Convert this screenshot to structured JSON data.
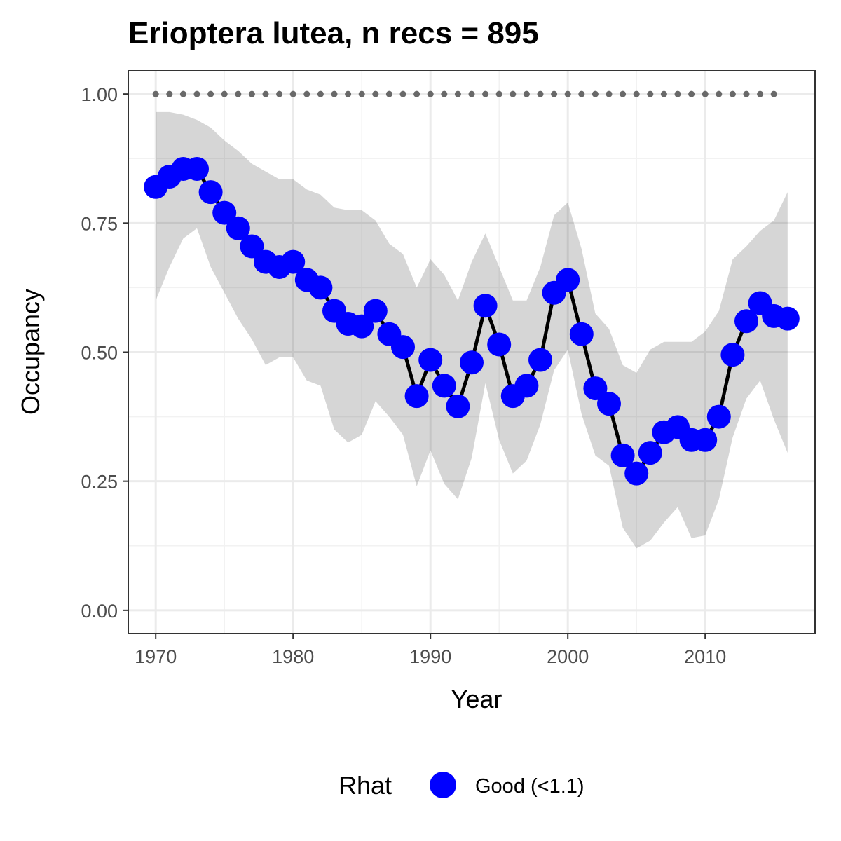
{
  "chart_data": {
    "type": "line",
    "title": "Erioptera lutea, n recs = 895",
    "xlabel": "Year",
    "ylabel": "Occupancy",
    "xlim": [
      1968,
      2018
    ],
    "ylim": [
      -0.045,
      1.045
    ],
    "x_ticks": [
      1970,
      1980,
      1990,
      2000,
      2010
    ],
    "x_tick_labels": [
      "1970",
      "1980",
      "1990",
      "2000",
      "2010"
    ],
    "y_ticks": [
      0,
      0.25,
      0.5,
      0.75,
      1.0
    ],
    "y_tick_labels": [
      "0.00",
      "0.25",
      "0.50",
      "0.75",
      "1.00"
    ],
    "grid": true,
    "legend": {
      "title": "Rhat",
      "position": "bottom",
      "entries": [
        {
          "label": "Good (<1.1)",
          "color": "#0000ff"
        }
      ]
    },
    "x": [
      1970,
      1971,
      1972,
      1973,
      1974,
      1975,
      1976,
      1977,
      1978,
      1979,
      1980,
      1981,
      1982,
      1983,
      1984,
      1985,
      1986,
      1987,
      1988,
      1989,
      1990,
      1991,
      1992,
      1993,
      1994,
      1995,
      1996,
      1997,
      1998,
      1999,
      2000,
      2001,
      2002,
      2003,
      2004,
      2005,
      2006,
      2007,
      2008,
      2009,
      2010,
      2011,
      2012,
      2013,
      2014,
      2015,
      2016
    ],
    "series": [
      {
        "role": "mean",
        "color": "#0000ff",
        "line_color": "#000000",
        "values": [
          0.82,
          0.84,
          0.855,
          0.855,
          0.81,
          0.77,
          0.74,
          0.705,
          0.675,
          0.665,
          0.675,
          0.64,
          0.625,
          0.58,
          0.555,
          0.55,
          0.58,
          0.535,
          0.51,
          0.415,
          0.485,
          0.435,
          0.395,
          0.48,
          0.59,
          0.515,
          0.415,
          0.435,
          0.485,
          0.615,
          0.64,
          0.535,
          0.43,
          0.4,
          0.3,
          0.265,
          0.305,
          0.345,
          0.355,
          0.33,
          0.33,
          0.375,
          0.495,
          0.56,
          0.595,
          0.57,
          0.565
        ]
      },
      {
        "role": "ci_upper",
        "color": "#d9d9d9",
        "values": [
          0.965,
          0.965,
          0.96,
          0.95,
          0.935,
          0.91,
          0.89,
          0.865,
          0.85,
          0.835,
          0.835,
          0.815,
          0.805,
          0.78,
          0.775,
          0.775,
          0.755,
          0.71,
          0.69,
          0.625,
          0.68,
          0.65,
          0.6,
          0.675,
          0.73,
          0.665,
          0.6,
          0.6,
          0.665,
          0.765,
          0.79,
          0.7,
          0.575,
          0.545,
          0.475,
          0.46,
          0.505,
          0.52,
          0.52,
          0.52,
          0.54,
          0.58,
          0.68,
          0.705,
          0.735,
          0.755,
          0.81
        ]
      },
      {
        "role": "ci_lower",
        "color": "#d9d9d9",
        "values": [
          0.6,
          0.665,
          0.72,
          0.74,
          0.665,
          0.615,
          0.565,
          0.525,
          0.475,
          0.49,
          0.49,
          0.445,
          0.435,
          0.35,
          0.325,
          0.34,
          0.405,
          0.375,
          0.34,
          0.24,
          0.31,
          0.245,
          0.215,
          0.295,
          0.44,
          0.33,
          0.265,
          0.29,
          0.36,
          0.465,
          0.505,
          0.38,
          0.3,
          0.28,
          0.16,
          0.12,
          0.135,
          0.17,
          0.2,
          0.14,
          0.145,
          0.215,
          0.335,
          0.41,
          0.445,
          0.37,
          0.305
        ]
      },
      {
        "role": "reference",
        "color": "#696969",
        "x": [
          1970,
          1971,
          1972,
          1973,
          1974,
          1975,
          1976,
          1977,
          1978,
          1979,
          1980,
          1981,
          1982,
          1983,
          1984,
          1985,
          1986,
          1987,
          1988,
          1989,
          1990,
          1991,
          1992,
          1993,
          1994,
          1995,
          1996,
          1997,
          1998,
          1999,
          2000,
          2001,
          2002,
          2003,
          2004,
          2005,
          2006,
          2007,
          2008,
          2009,
          2010,
          2011,
          2012,
          2013,
          2014,
          2015
        ],
        "value": 1.0
      }
    ]
  }
}
